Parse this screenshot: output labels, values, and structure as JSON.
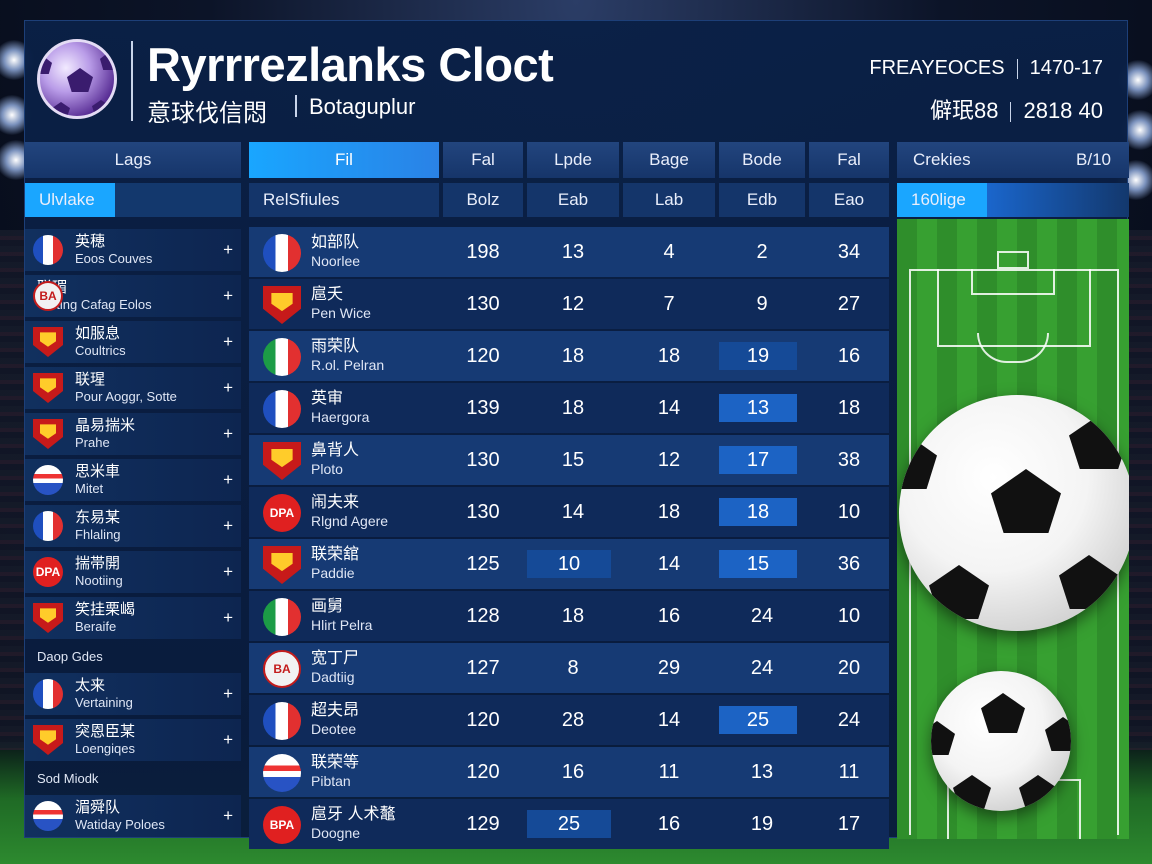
{
  "header": {
    "title": "Ryrrrezlanks Cloct",
    "subtitle_cn": "意球伐信悶",
    "subtitle_en": "Botaguplur",
    "right_top_label": "FREAYEOCES",
    "right_top_value": "1470-17",
    "right_bottom_label": "僻珉88",
    "right_bottom_value": "2818 40"
  },
  "columns": {
    "left": "Lags",
    "active": "Fil",
    "c1": "Fal",
    "c2": "Lpde",
    "c3": "Bage",
    "c4": "Bode",
    "c5": "Fal",
    "right_label": "Crekies",
    "right_value": "B/10"
  },
  "subheaders": {
    "left": "Ulvlake",
    "main": "RelSfiules",
    "s1": "Bolz",
    "s2": "Eab",
    "s3": "Lab",
    "s4": "Edb",
    "s5": "Eao",
    "right": "160lige"
  },
  "left_list": [
    {
      "cn": "英穂",
      "en": "Eoos Couves",
      "badge": "fr",
      "text": ""
    },
    {
      "cn": "联瑂",
      "en": "Yarting Cafag Eolos",
      "badge": "text-light",
      "text": "BA"
    },
    {
      "cn": "如服息",
      "en": "Coultrics",
      "badge": "shield",
      "text": ""
    },
    {
      "cn": "联瑆",
      "en": "Pour Aoggr, Sotte",
      "badge": "shield",
      "text": ""
    },
    {
      "cn": "晶易揣米",
      "en": "Prahe",
      "badge": "shield",
      "text": ""
    },
    {
      "cn": "思米車",
      "en": "Mitet",
      "badge": "stripe",
      "text": ""
    },
    {
      "cn": "东易某",
      "en": "Fhlaling",
      "badge": "fr",
      "text": ""
    },
    {
      "cn": "揣帯開",
      "en": "Nootiing",
      "badge": "text",
      "text": "DPA"
    },
    {
      "cn": "笑挂栗嵑",
      "en": "Beraife",
      "badge": "shield",
      "text": ""
    },
    {
      "heading": "Daop Gdes"
    },
    {
      "cn": "太来",
      "en": "Vertaining",
      "badge": "fr",
      "text": ""
    },
    {
      "cn": "突恩臣某",
      "en": "Loengiqes",
      "badge": "shield",
      "text": ""
    },
    {
      "heading": "Sod Miodk"
    },
    {
      "cn": "湄舜队",
      "en": "Watiday Poloes",
      "badge": "stripe",
      "text": ""
    }
  ],
  "rows": [
    {
      "cn": "如部队",
      "en": "Noorlee",
      "badge": "fr",
      "text": "",
      "v": [
        "198",
        "13",
        "4",
        "2",
        "34"
      ],
      "hl": [
        null,
        null,
        null,
        null,
        null
      ]
    },
    {
      "cn": "扈夭",
      "en": "Pen Wice",
      "badge": "shield",
      "text": "",
      "v": [
        "130",
        "12",
        "7",
        "9",
        "27"
      ],
      "hl": [
        null,
        null,
        null,
        null,
        null
      ]
    },
    {
      "cn": "雨荣队",
      "en": "R.ol.  Pelran",
      "badge": "it",
      "text": "",
      "v": [
        "120",
        "18",
        "18",
        "19",
        "16"
      ],
      "hl": [
        null,
        null,
        null,
        "hl2",
        null
      ]
    },
    {
      "cn": "英审",
      "en": "Haergora",
      "badge": "fr",
      "text": "",
      "v": [
        "139",
        "18",
        "14",
        "13",
        "18"
      ],
      "hl": [
        null,
        null,
        null,
        "hl",
        null
      ]
    },
    {
      "cn": "鼻背人",
      "en": "Ploto",
      "badge": "shield",
      "text": "",
      "v": [
        "130",
        "15",
        "12",
        "17",
        "38"
      ],
      "hl": [
        null,
        null,
        null,
        "hl",
        null
      ]
    },
    {
      "cn": "闹夫来",
      "en": "Rlgnd Agere",
      "badge": "text",
      "text": "DPA",
      "v": [
        "130",
        "14",
        "18",
        "18",
        "10"
      ],
      "hl": [
        null,
        null,
        null,
        "hl",
        null
      ]
    },
    {
      "cn": "联荣舘",
      "en": "Paddie",
      "badge": "shield",
      "text": "",
      "v": [
        "125",
        "10",
        "14",
        "15",
        "36"
      ],
      "hl": [
        null,
        "hl2",
        null,
        "hl",
        null
      ]
    },
    {
      "cn": "画舅",
      "en": "Hlirt Pelra",
      "badge": "it",
      "text": "",
      "v": [
        "128",
        "18",
        "16",
        "24",
        "10"
      ],
      "hl": [
        null,
        null,
        null,
        null,
        null
      ]
    },
    {
      "cn": "宽丁尸",
      "en": "Dadtiig",
      "badge": "text-light",
      "text": "BA",
      "v": [
        "127",
        "8",
        "29",
        "24",
        "20"
      ],
      "hl": [
        null,
        null,
        null,
        null,
        null
      ]
    },
    {
      "cn": "超夫昂",
      "en": "Deotee",
      "badge": "fr",
      "text": "",
      "v": [
        "120",
        "28",
        "14",
        "25",
        "24"
      ],
      "hl": [
        null,
        null,
        null,
        "hl",
        null
      ]
    },
    {
      "cn": "联荣等",
      "en": "Pibtan",
      "badge": "stripe",
      "text": "",
      "v": [
        "120",
        "16",
        "11",
        "13",
        "11"
      ],
      "hl": [
        null,
        null,
        null,
        null,
        null
      ]
    },
    {
      "cn": "扈牙 人术鼇",
      "en": "Doogne",
      "badge": "text",
      "text": "BPA",
      "v": [
        "129",
        "25",
        "16",
        "19",
        "17"
      ],
      "hl": [
        null,
        "hl2",
        null,
        null,
        null
      ]
    }
  ]
}
